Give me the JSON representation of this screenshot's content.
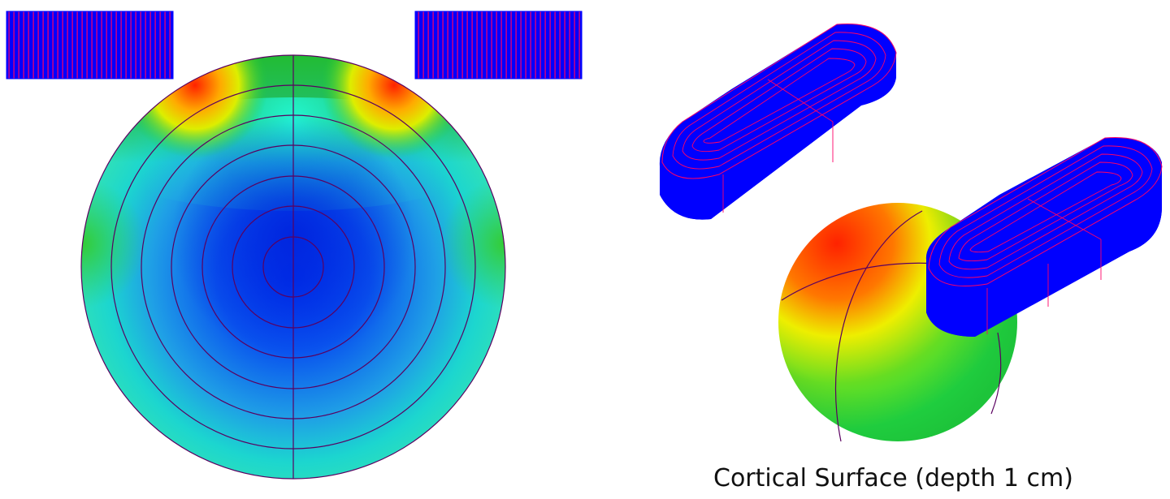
{
  "caption": "Cortical Surface (depth 1 cm)",
  "colors": {
    "coil": "#0000ff",
    "winding": "#ff0066",
    "grid_line": "#5a0060",
    "field_high": "#ff2200",
    "field_mid": "#ffee00",
    "field_low": "#00ddaa",
    "field_min": "#0033ee"
  }
}
